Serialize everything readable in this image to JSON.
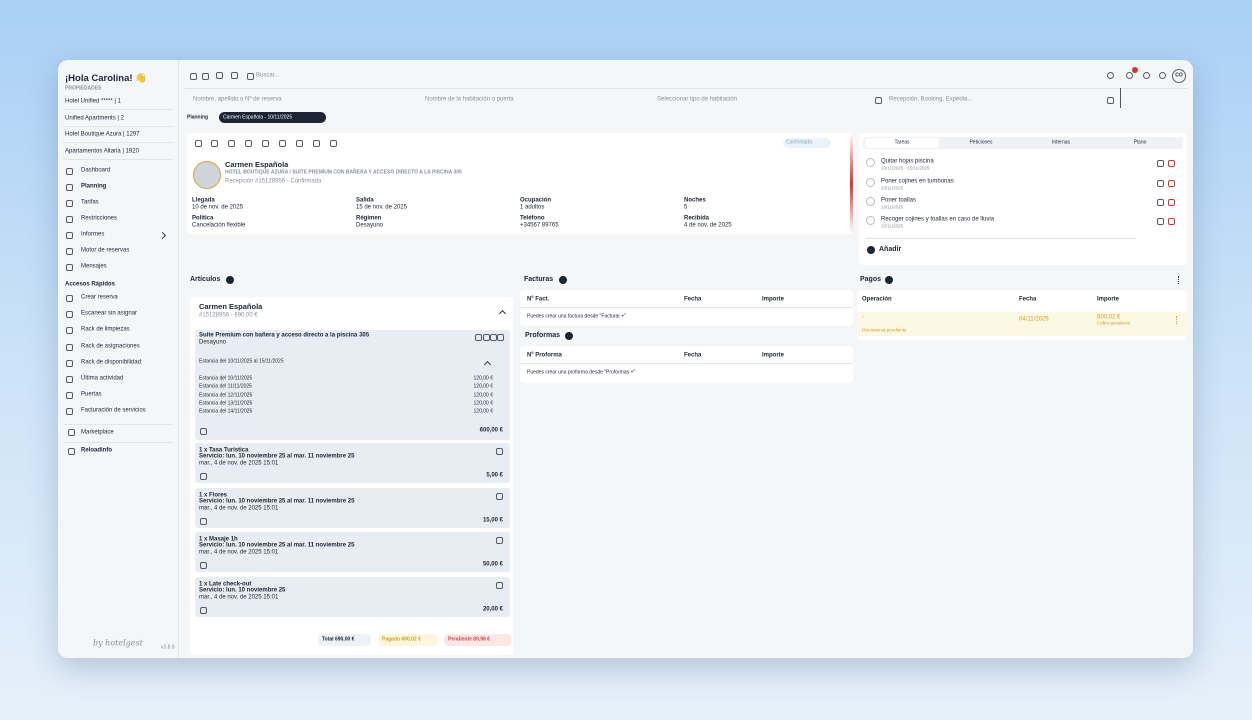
{
  "sidebar": {
    "greeting": "¡Hola Carolina! 👋",
    "properties_label": "PROPIEDADES",
    "properties": [
      "Hotel Unified ***** | 1",
      "Unified Apartments | 2",
      "Hotel Boutique Azura | 1297",
      "Apartamentos Altaria | 1920"
    ],
    "nav": [
      "Dashboard",
      "Planning",
      "Tarifas",
      "Restricciones",
      "Informes",
      "Motor de reservas",
      "Mensajes"
    ],
    "quick_label": "Accesos Rápidos",
    "quick": [
      "Crear reserva",
      "Escanear sin asignar",
      "Rack de limpiezas",
      "Rack de asignaciones",
      "Rack de disponibilidad",
      "Última actividad",
      "Puertas",
      "Facturación de servicios"
    ],
    "marketplace": "Marketplace",
    "reload": "Reloadinfo",
    "brand": "by hotelgest",
    "version": "v3.8.8"
  },
  "topbar": {
    "search": "Buscar...",
    "avatar": "CO",
    "filters": [
      "Nombre, apellido o Nº de reserva",
      "Nombre de la habitación o puerta",
      "Seleccionar tipo de habitación",
      "Recepción, Booking, Expedia..."
    ],
    "breadcrumb": "Planning",
    "tab": "Carmen Española - 10/11/2025"
  },
  "reservation": {
    "status": "Confirmada",
    "guest": "Carmen Española",
    "hotel_line": "HOTEL BOUTIQUE AZURA / SUITE PREMIUM CON BAÑERA Y ACCESO DIRECTO A LA PISCINA 305",
    "ref": "Recepción #15128956 - Confirmada",
    "fields": [
      {
        "label": "Llegada",
        "value": "10 de nov. de 2025"
      },
      {
        "label": "Salida",
        "value": "15 de nov. de 2025"
      },
      {
        "label": "Ocupación",
        "value": "1 adultos"
      },
      {
        "label": "Noches",
        "value": "5"
      },
      {
        "label": "Política",
        "value": "Cancelación flexible"
      },
      {
        "label": "Régimen",
        "value": "Desayuno"
      },
      {
        "label": "Teléfono",
        "value": "+34567 89765"
      },
      {
        "label": "Recibida",
        "value": "4 de nov. de 2025"
      }
    ]
  },
  "tasks": {
    "tabs": [
      "Tareas",
      "Peticiones",
      "Internas",
      "Plano"
    ],
    "items": [
      {
        "title": "Quitar hojas piscina",
        "date": "10/11/2025 - 15/11/2025"
      },
      {
        "title": "Poner cojines en tumbonas",
        "date": "10/11/2025"
      },
      {
        "title": "Poner toallas",
        "date": "10/11/2025"
      },
      {
        "title": "Recoger cojines y toallas en caso de lluvia",
        "date": "10/11/2025"
      }
    ],
    "add": "Añadir"
  },
  "articles": {
    "title": "Artículos",
    "name": "Carmen Española",
    "sub": "#15128956 - 690,00 €",
    "room": "Suite Premium con bañera y acceso directo a la piscina 305",
    "regime": "Desayuno",
    "stay_title": "Estancia del 10/11/2025 al 15/11/2025",
    "nights": [
      {
        "label": "Estancia del 10/11/2025",
        "amount": "120,00 €"
      },
      {
        "label": "Estancia del 11/11/2025",
        "amount": "120,00 €"
      },
      {
        "label": "Estancia del 12/11/2025",
        "amount": "120,00 €"
      },
      {
        "label": "Estancia del 13/11/2025",
        "amount": "120,00 €"
      },
      {
        "label": "Estancia del 14/11/2025",
        "amount": "120,00 €"
      }
    ],
    "room_total": "600,00 €",
    "services": [
      {
        "title": "1 x Tasa Turística",
        "service": "Servicio: lun. 10 noviembre 25 al mar. 11 noviembre 25",
        "date": "mar., 4 de nov. de 2025 15:01",
        "amount": "5,00 €"
      },
      {
        "title": "1 x Flores",
        "service": "Servicio: lun. 10 noviembre 25 al mar. 11 noviembre 25",
        "date": "mar., 4 de nov. de 2025 15:01",
        "amount": "15,00 €"
      },
      {
        "title": "1 x Masaje 1h",
        "service": "Servicio: lun. 10 noviembre 25 al mar. 11 noviembre 25",
        "date": "mar., 4 de nov. de 2025 15:01",
        "amount": "50,00 €"
      },
      {
        "title": "1 x Late check-out",
        "service": "Servicio: lun. 10 noviembre 25",
        "date": "mar., 4 de nov. de 2025 15:01",
        "amount": "20,00 €"
      }
    ],
    "total": "Total 690,00 €",
    "paid": "Pagado 600,02 €",
    "pending": "Pendiente 89,98 €"
  },
  "invoices": {
    "title": "Facturas",
    "columns": [
      "Nº Fact.",
      "Fecha",
      "Importe"
    ],
    "empty": "Puedes crear una factura desde \"Facturar +\""
  },
  "proformas": {
    "title": "Proformas",
    "columns": [
      "Nº Proforma",
      "Fecha",
      "Importe"
    ],
    "empty": "Puedes crear una proforma desde \"Proformas +\""
  },
  "payments": {
    "title": "Pagos",
    "columns": [
      "Operación",
      "Fecha",
      "Importe"
    ],
    "operation": "-",
    "note": "Pre-reserva pendiente",
    "date": "04/11/2025",
    "amount": "600,02 €",
    "amount_note": "Cobro pendiente"
  }
}
